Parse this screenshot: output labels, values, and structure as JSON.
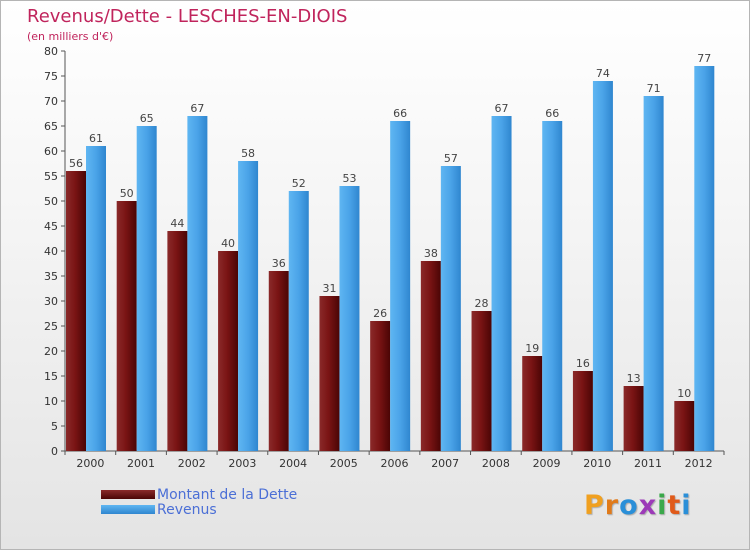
{
  "header": {
    "title": "Revenus/Dette - LESCHES-EN-DIOIS",
    "subtitle": "(en milliers d'€)"
  },
  "legend": {
    "items": [
      {
        "label": "Montant de la Dette",
        "color": "#7a1414"
      },
      {
        "label": "Revenus",
        "color": "#4aa3e8"
      }
    ]
  },
  "logo": {
    "letters": [
      "P",
      "r",
      "o",
      "x",
      "i",
      "t",
      "i"
    ],
    "colors": [
      "#f0a020",
      "#e07a1a",
      "#2a8fd8",
      "#9c3ab8",
      "#3aa84a",
      "#e05a1a",
      "#2a8fd8"
    ]
  },
  "chart_data": {
    "type": "bar",
    "title": "Revenus/Dette - LESCHES-EN-DIOIS",
    "subtitle": "(en milliers d'€)",
    "categories": [
      "2000",
      "2001",
      "2002",
      "2003",
      "2004",
      "2005",
      "2006",
      "2007",
      "2008",
      "2009",
      "2010",
      "2011",
      "2012"
    ],
    "series": [
      {
        "name": "Montant de la Dette",
        "color": "#7a1414",
        "values": [
          56,
          50,
          44,
          40,
          36,
          31,
          26,
          38,
          28,
          19,
          16,
          13,
          10
        ]
      },
      {
        "name": "Revenus",
        "color": "#4aa3e8",
        "values": [
          61,
          65,
          67,
          58,
          52,
          53,
          66,
          57,
          67,
          66,
          74,
          71,
          77
        ]
      }
    ],
    "ylim": [
      0,
      80
    ],
    "yticks": [
      0,
      5,
      10,
      15,
      20,
      25,
      30,
      35,
      40,
      45,
      50,
      55,
      60,
      65,
      70,
      75,
      80
    ],
    "grid": false,
    "legend_position": "bottom-left"
  }
}
